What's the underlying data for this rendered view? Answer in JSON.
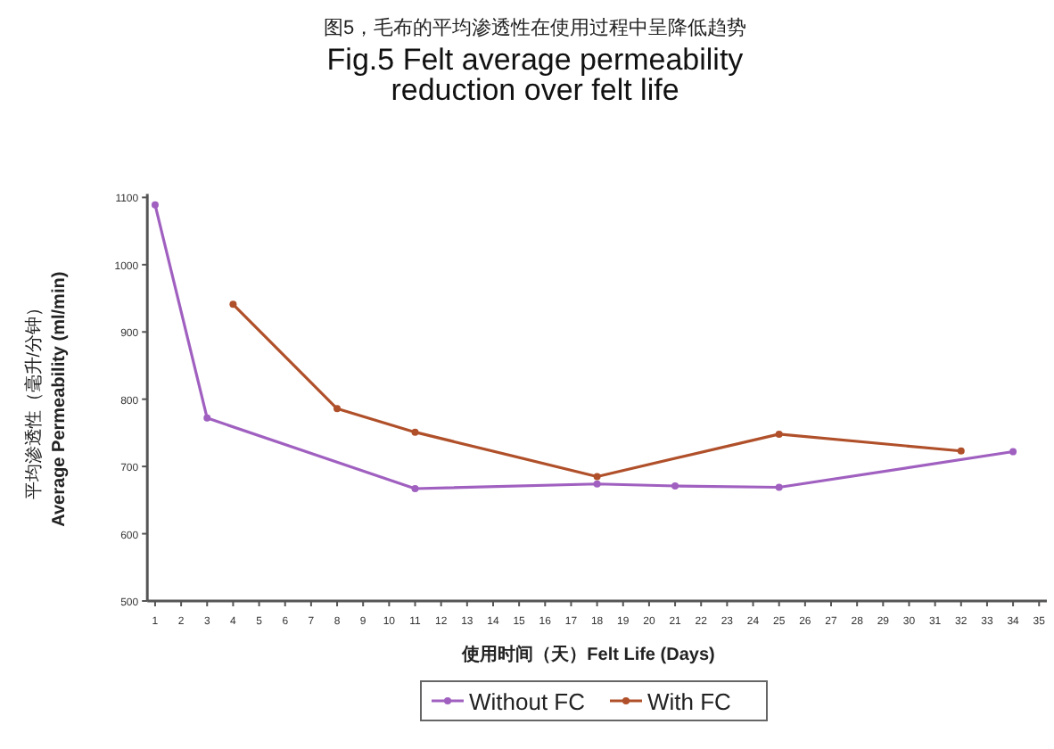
{
  "chart_data": {
    "type": "line",
    "title": "Fig.5 Felt average permeability\nreduction over felt life",
    "subtitle": "图5，毛布的平均渗透性在使用过程中呈降低趋势",
    "xlabel": "使用时间（天）Felt Life (Days)",
    "ylabel": "平均渗透性（毫升/分钟）\nAverage Permeability (ml/min)",
    "xlim": [
      0.7,
      35.3
    ],
    "xticks": [
      1,
      2,
      3,
      4,
      5,
      6,
      7,
      8,
      9,
      10,
      11,
      12,
      13,
      14,
      15,
      16,
      17,
      18,
      19,
      20,
      21,
      22,
      23,
      24,
      25,
      26,
      27,
      28,
      29,
      30,
      31,
      32,
      33,
      34,
      35
    ],
    "ylim": [
      500,
      1100
    ],
    "yticks": [
      500,
      600,
      700,
      800,
      900,
      1000,
      1100
    ],
    "grid": false,
    "legend": "bottom",
    "marker": "circle",
    "line_style": "solid",
    "series": [
      {
        "name": "Without FC",
        "color": "#a060c0",
        "x": [
          1,
          3,
          11,
          18,
          21,
          25,
          34
        ],
        "values": [
          1089,
          772,
          667,
          674,
          671,
          669,
          722
        ]
      },
      {
        "name": "With FC",
        "color": "#b0502a",
        "x": [
          4,
          8,
          11,
          18,
          25,
          32
        ],
        "values": [
          941,
          786,
          751,
          685,
          748,
          723
        ]
      }
    ]
  }
}
